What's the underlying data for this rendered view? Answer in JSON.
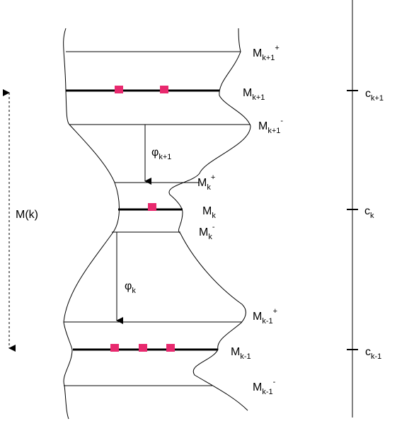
{
  "colors": {
    "line": "#000000",
    "critical_marker": "#e8296e",
    "background": "#ffffff"
  },
  "side_label": {
    "base": "M(k)"
  },
  "level_labels": [
    {
      "id": "mk1-plus",
      "base": "M",
      "sub": "k+1",
      "sup": "+"
    },
    {
      "id": "mk1",
      "base": "M",
      "sub": "k+1",
      "sup": ""
    },
    {
      "id": "mk1-minus",
      "base": "M",
      "sub": "k+1",
      "sup": "-"
    },
    {
      "id": "mk-plus",
      "base": "M",
      "sub": "k",
      "sup": "+"
    },
    {
      "id": "mk",
      "base": "M",
      "sub": "k",
      "sup": ""
    },
    {
      "id": "mk-minus",
      "base": "M",
      "sub": "k",
      "sup": "-"
    },
    {
      "id": "mkm1-plus",
      "base": "M",
      "sub": "k-1",
      "sup": "+"
    },
    {
      "id": "mkm1",
      "base": "M",
      "sub": "k-1",
      "sup": ""
    },
    {
      "id": "mkm1-minus",
      "base": "M",
      "sub": "k-1",
      "sup": "-"
    }
  ],
  "flow_labels": [
    {
      "id": "phi-k1",
      "base": "φ",
      "sub": "k+1"
    },
    {
      "id": "phi-k",
      "base": "φ",
      "sub": "k"
    }
  ],
  "critical_values": [
    {
      "id": "c-k1",
      "base": "c",
      "sub": "k+1"
    },
    {
      "id": "c-k",
      "base": "c",
      "sub": "k"
    },
    {
      "id": "c-km1",
      "base": "c",
      "sub": "k-1"
    }
  ],
  "critical_points_per_level": [
    2,
    1,
    3
  ]
}
